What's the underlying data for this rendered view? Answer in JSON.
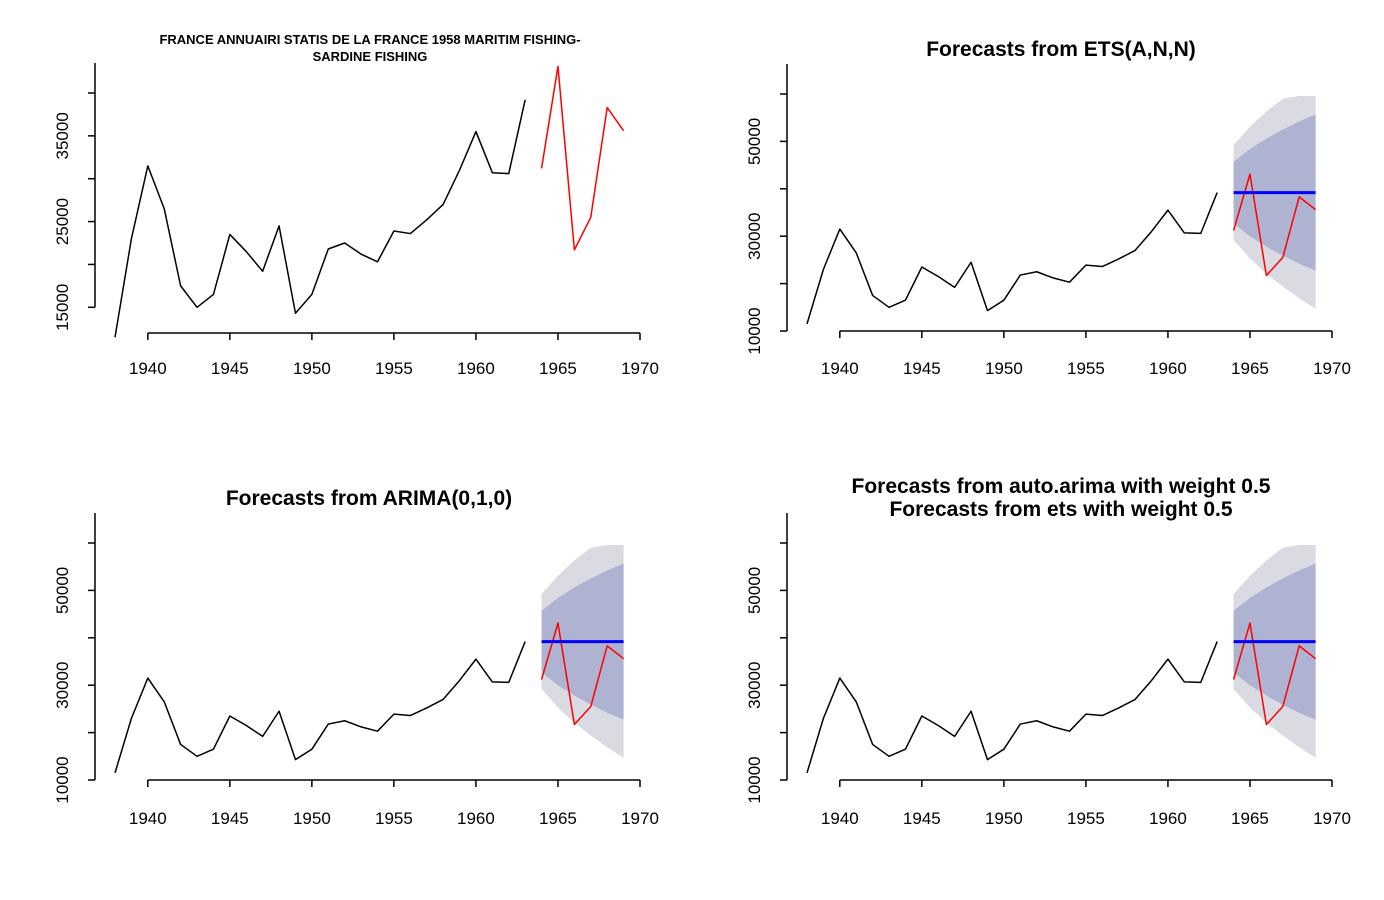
{
  "colors": {
    "history": "#000000",
    "actual": "#ff0000",
    "forecast": "#0000ff",
    "interval80": "#adb3d1",
    "interval95": "#d9dae2"
  },
  "chart_data": [
    {
      "type": "line",
      "title": "FRANCE ANNUAIRI STATIS DE LA FRANCE 1958 MARITIM FISHING-\nSARDINE FISHING",
      "xlim": [
        1938,
        1970
      ],
      "ylim": [
        12000,
        40000
      ],
      "xticks": [
        1940,
        1945,
        1950,
        1955,
        1960,
        1965,
        1970
      ],
      "xtick_labels": [
        "1940",
        "1945",
        "1950",
        "1955",
        "1960",
        "1965",
        "1970"
      ],
      "yticks": [
        15000,
        20000,
        25000,
        30000,
        35000,
        40000
      ],
      "ytick_labels": [
        "15000",
        "",
        "25000",
        "",
        "35000",
        ""
      ],
      "series": [
        {
          "role": "history",
          "x": [
            1938,
            1939,
            1940,
            1941,
            1942,
            1943,
            1944,
            1945,
            1946,
            1947,
            1948,
            1949,
            1950,
            1951,
            1952,
            1953,
            1954,
            1955,
            1956,
            1957,
            1958,
            1959,
            1960,
            1961,
            1962,
            1963
          ],
          "values": [
            11500,
            23000,
            31500,
            26500,
            17500,
            15000,
            16500,
            23500,
            21500,
            19200,
            24500,
            14300,
            16500,
            21800,
            22500,
            21200,
            20300,
            23900,
            23600,
            25200,
            27000,
            31000,
            35500,
            30700,
            30600,
            39200
          ]
        },
        {
          "role": "actual",
          "x": [
            1964,
            1965,
            1966,
            1967,
            1968,
            1969
          ],
          "values": [
            31200,
            43100,
            21700,
            25500,
            38300,
            35600
          ]
        }
      ]
    },
    {
      "type": "line",
      "title": "Forecasts from ETS(A,N,N)",
      "xlim": [
        1938,
        1970
      ],
      "ylim": [
        10000,
        60000
      ],
      "xticks": [
        1940,
        1945,
        1950,
        1955,
        1960,
        1965,
        1970
      ],
      "xtick_labels": [
        "1940",
        "1945",
        "1950",
        "1955",
        "1960",
        "1965",
        "1970"
      ],
      "yticks": [
        10000,
        20000,
        30000,
        40000,
        50000,
        60000
      ],
      "ytick_labels": [
        "10000",
        "",
        "30000",
        "",
        "50000",
        ""
      ],
      "series": [
        {
          "role": "history",
          "x": [
            1938,
            1939,
            1940,
            1941,
            1942,
            1943,
            1944,
            1945,
            1946,
            1947,
            1948,
            1949,
            1950,
            1951,
            1952,
            1953,
            1954,
            1955,
            1956,
            1957,
            1958,
            1959,
            1960,
            1961,
            1962,
            1963
          ],
          "values": [
            11500,
            23000,
            31500,
            26500,
            17500,
            15000,
            16500,
            23500,
            21500,
            19200,
            24500,
            14300,
            16500,
            21800,
            22500,
            21200,
            20300,
            23900,
            23600,
            25200,
            27000,
            31000,
            35500,
            30700,
            30600,
            39200
          ]
        },
        {
          "role": "actual",
          "x": [
            1964,
            1965,
            1966,
            1967,
            1968,
            1969
          ],
          "values": [
            31200,
            43100,
            21700,
            25500,
            38300,
            35600
          ]
        },
        {
          "role": "forecast",
          "x": [
            1964,
            1965,
            1966,
            1967,
            1968,
            1969
          ],
          "values": [
            39200,
            39200,
            39200,
            39200,
            39200,
            39200
          ]
        }
      ],
      "intervals": {
        "x": [
          1964,
          1965,
          1966,
          1967,
          1968,
          1969
        ],
        "lo80": [
          32700,
          30000,
          27800,
          25900,
          24200,
          22700
        ],
        "hi80": [
          45700,
          48400,
          50600,
          52500,
          54200,
          55700
        ],
        "lo95": [
          29200,
          25300,
          22100,
          19400,
          16900,
          14700
        ],
        "hi95": [
          49200,
          53100,
          56300,
          59000,
          61500,
          63700
        ]
      }
    },
    {
      "type": "line",
      "title": "Forecasts from ARIMA(0,1,0)",
      "xlim": [
        1938,
        1970
      ],
      "ylim": [
        10000,
        60000
      ],
      "xticks": [
        1940,
        1945,
        1950,
        1955,
        1960,
        1965,
        1970
      ],
      "xtick_labels": [
        "1940",
        "1945",
        "1950",
        "1955",
        "1960",
        "1965",
        "1970"
      ],
      "yticks": [
        10000,
        20000,
        30000,
        40000,
        50000,
        60000
      ],
      "ytick_labels": [
        "10000",
        "",
        "30000",
        "",
        "50000",
        ""
      ],
      "series": [
        {
          "role": "history",
          "x": [
            1938,
            1939,
            1940,
            1941,
            1942,
            1943,
            1944,
            1945,
            1946,
            1947,
            1948,
            1949,
            1950,
            1951,
            1952,
            1953,
            1954,
            1955,
            1956,
            1957,
            1958,
            1959,
            1960,
            1961,
            1962,
            1963
          ],
          "values": [
            11500,
            23000,
            31500,
            26500,
            17500,
            15000,
            16500,
            23500,
            21500,
            19200,
            24500,
            14300,
            16500,
            21800,
            22500,
            21200,
            20300,
            23900,
            23600,
            25200,
            27000,
            31000,
            35500,
            30700,
            30600,
            39200
          ]
        },
        {
          "role": "actual",
          "x": [
            1964,
            1965,
            1966,
            1967,
            1968,
            1969
          ],
          "values": [
            31200,
            43100,
            21700,
            25500,
            38300,
            35600
          ]
        },
        {
          "role": "forecast",
          "x": [
            1964,
            1965,
            1966,
            1967,
            1968,
            1969
          ],
          "values": [
            39200,
            39200,
            39200,
            39200,
            39200,
            39200
          ]
        }
      ],
      "intervals": {
        "x": [
          1964,
          1965,
          1966,
          1967,
          1968,
          1969
        ],
        "lo80": [
          32700,
          30000,
          27800,
          25900,
          24200,
          22700
        ],
        "hi80": [
          45700,
          48400,
          50600,
          52500,
          54200,
          55700
        ],
        "lo95": [
          29200,
          25300,
          22100,
          19400,
          16900,
          14700
        ],
        "hi95": [
          49200,
          53100,
          56300,
          59000,
          61500,
          63700
        ]
      }
    },
    {
      "type": "line",
      "title": "Forecasts from auto.arima with weight 0.5\nForecasts from ets with weight 0.5",
      "xlim": [
        1938,
        1970
      ],
      "ylim": [
        10000,
        60000
      ],
      "xticks": [
        1940,
        1945,
        1950,
        1955,
        1960,
        1965,
        1970
      ],
      "xtick_labels": [
        "1940",
        "1945",
        "1950",
        "1955",
        "1960",
        "1965",
        "1970"
      ],
      "yticks": [
        10000,
        20000,
        30000,
        40000,
        50000,
        60000
      ],
      "ytick_labels": [
        "10000",
        "",
        "30000",
        "",
        "50000",
        ""
      ],
      "series": [
        {
          "role": "history",
          "x": [
            1938,
            1939,
            1940,
            1941,
            1942,
            1943,
            1944,
            1945,
            1946,
            1947,
            1948,
            1949,
            1950,
            1951,
            1952,
            1953,
            1954,
            1955,
            1956,
            1957,
            1958,
            1959,
            1960,
            1961,
            1962,
            1963
          ],
          "values": [
            11500,
            23000,
            31500,
            26500,
            17500,
            15000,
            16500,
            23500,
            21500,
            19200,
            24500,
            14300,
            16500,
            21800,
            22500,
            21200,
            20300,
            23900,
            23600,
            25200,
            27000,
            31000,
            35500,
            30700,
            30600,
            39200
          ]
        },
        {
          "role": "actual",
          "x": [
            1964,
            1965,
            1966,
            1967,
            1968,
            1969
          ],
          "values": [
            31200,
            43100,
            21700,
            25500,
            38300,
            35600
          ]
        },
        {
          "role": "forecast",
          "x": [
            1964,
            1965,
            1966,
            1967,
            1968,
            1969
          ],
          "values": [
            39200,
            39200,
            39200,
            39200,
            39200,
            39200
          ]
        }
      ],
      "intervals": {
        "x": [
          1964,
          1965,
          1966,
          1967,
          1968,
          1969
        ],
        "lo80": [
          32700,
          30000,
          27800,
          25900,
          24200,
          22700
        ],
        "hi80": [
          45700,
          48400,
          50600,
          52500,
          54200,
          55700
        ],
        "lo95": [
          29200,
          25300,
          22100,
          19400,
          16900,
          14700
        ],
        "hi95": [
          49200,
          53100,
          56300,
          59000,
          61500,
          63700
        ]
      }
    }
  ]
}
